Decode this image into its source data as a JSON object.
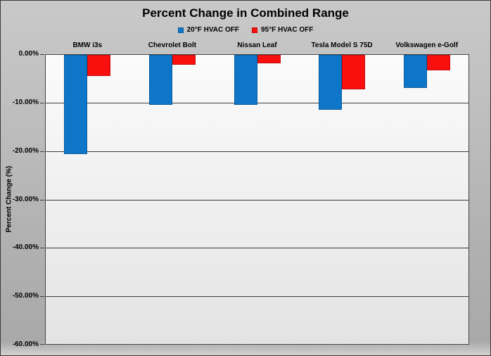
{
  "chart_data": {
    "type": "bar",
    "title": "Percent Change in Combined Range",
    "categories": [
      "BMW i3s",
      "Chevrolet Bolt",
      "Nissan Leaf",
      "Tesla Model S 75D",
      "Volkswagen e-Golf"
    ],
    "series": [
      {
        "name": "20°F HVAC OFF",
        "color": "#0e76c8",
        "values": [
          -20.5,
          -10.3,
          -10.3,
          -11.3,
          -6.8
        ]
      },
      {
        "name": "95°F HVAC OFF",
        "color": "#fa0f0f",
        "values": [
          -4.3,
          -2.0,
          -1.8,
          -7.1,
          -3.2
        ]
      }
    ],
    "xlabel": "",
    "ylabel": "Percent Change (%)",
    "ylim": [
      -60,
      0
    ],
    "ytick_values": [
      0,
      -10,
      -20,
      -30,
      -40,
      -50,
      -60
    ],
    "ytick_labels": [
      "0.00%",
      "-10.00%",
      "-20.00%",
      "-30.00%",
      "-40.00%",
      "-50.00%",
      "-60.00%"
    ],
    "grid": true,
    "legend_position": "top-center",
    "category_labels_position": "top"
  },
  "colors": {
    "background_top": "#c9c9c9",
    "background_bottom": "#a9a9a9",
    "plot_top": "#fbfbfb",
    "plot_bottom": "#e3e3e3",
    "gridline": "#3c3c3c",
    "series_blue": "#0e76c8",
    "series_red": "#fa0f0f"
  }
}
